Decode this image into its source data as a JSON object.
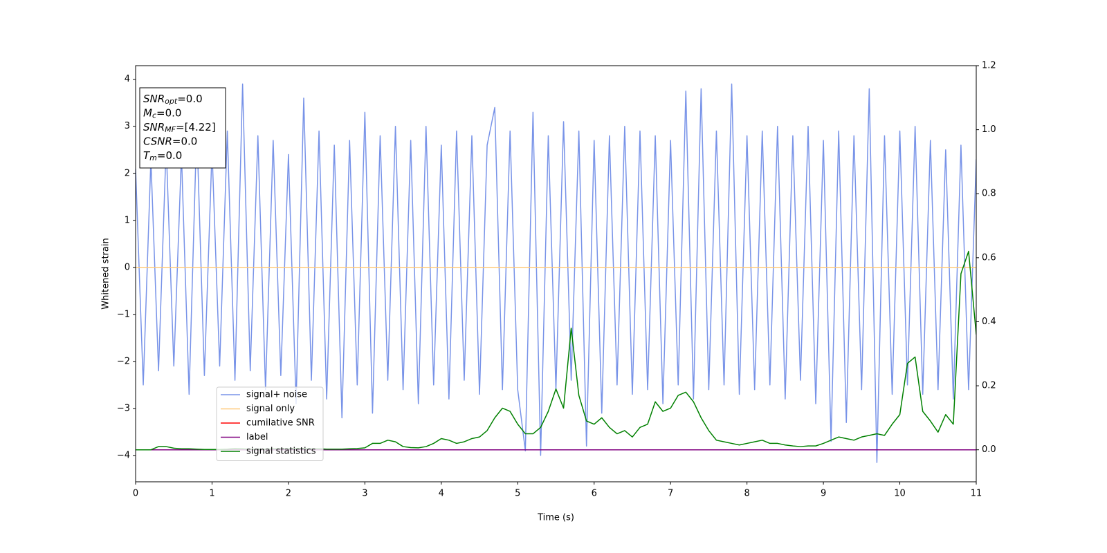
{
  "chart_data": {
    "type": "line",
    "xlabel": "Time (s)",
    "ylabel": "Whitened strain",
    "xlim": [
      0,
      11
    ],
    "ylim": [
      -4.56,
      4.29
    ],
    "y2lim": [
      -0.1,
      1.2
    ],
    "xticks": [
      0,
      1,
      2,
      3,
      4,
      5,
      6,
      7,
      8,
      9,
      10,
      11
    ],
    "yticks": [
      {
        "value": -4,
        "label": "−4"
      },
      {
        "value": -3,
        "label": "−3"
      },
      {
        "value": -2,
        "label": "−2"
      },
      {
        "value": -1,
        "label": "−1"
      },
      0,
      1,
      2,
      3,
      4
    ],
    "y2ticks": [
      {
        "value": 0,
        "label": "0.0"
      },
      0.2,
      0.4,
      0.6,
      0.8,
      {
        "value": 1,
        "label": "1.0"
      },
      1.2
    ],
    "legend": "lower left",
    "annotation": [
      {
        "main": "SNR",
        "sub": "opt",
        "value": "=0.0"
      },
      {
        "main": "M",
        "sub": "c",
        "value": "=0.0"
      },
      {
        "main": "SNR",
        "sub": "MF",
        "value": "=[4.22]"
      },
      {
        "main": "CSNR",
        "value": "=0.0"
      },
      {
        "main": "T",
        "sub": "m",
        "value": "=0.0"
      }
    ],
    "x": [
      0,
      0.1,
      0.2,
      0.3,
      0.4,
      0.5,
      0.6,
      0.7,
      0.8,
      0.9,
      1,
      1.1,
      1.2,
      1.3,
      1.4,
      1.5,
      1.6,
      1.7,
      1.8,
      1.9,
      2,
      2.1,
      2.2,
      2.3,
      2.4,
      2.5,
      2.6,
      2.7,
      2.8,
      2.9,
      3,
      3.1,
      3.2,
      3.3,
      3.4,
      3.5,
      3.6,
      3.7,
      3.8,
      3.9,
      4,
      4.1,
      4.2,
      4.3,
      4.4,
      4.5,
      4.6,
      4.7,
      4.8,
      4.9,
      5,
      5.1,
      5.2,
      5.3,
      5.4,
      5.5,
      5.6,
      5.7,
      5.8,
      5.9,
      6,
      6.1,
      6.2,
      6.3,
      6.4,
      6.5,
      6.6,
      6.7,
      6.8,
      6.9,
      7,
      7.1,
      7.2,
      7.3,
      7.4,
      7.5,
      7.6,
      7.7,
      7.8,
      7.9,
      8,
      8.1,
      8.2,
      8.3,
      8.4,
      8.5,
      8.6,
      8.7,
      8.8,
      8.9,
      9,
      9.1,
      9.2,
      9.3,
      9.4,
      9.5,
      9.6,
      9.7,
      9.8,
      9.9,
      10,
      10.1,
      10.2,
      10.3,
      10.4,
      10.5,
      10.6,
      10.7,
      10.8,
      10.9,
      11
    ],
    "series": [
      {
        "name": "signal+ noise",
        "color": "#7893e8",
        "values": [
          2.1,
          -2.5,
          2.3,
          -2.2,
          2.6,
          -2.1,
          2.4,
          -2.7,
          3,
          -2.3,
          2.5,
          -2.1,
          2.9,
          -2.4,
          3.9,
          -2.2,
          2.8,
          -2.6,
          2.7,
          -2.3,
          2.4,
          -2.9,
          3.6,
          -2.4,
          2.9,
          -2.8,
          2.6,
          -3.2,
          2.7,
          -2.5,
          3.3,
          -3.1,
          2.8,
          -2.4,
          3,
          -2.6,
          2.7,
          -2.9,
          3,
          -2.5,
          2.6,
          -2.8,
          2.9,
          -2.4,
          2.8,
          -2.7,
          2.6,
          3.4,
          -2.6,
          2.9,
          -2.6,
          -3.9,
          3.3,
          -4,
          2.8,
          -2.6,
          3.1,
          -2.4,
          2.9,
          -3.8,
          2.7,
          -3.1,
          2.8,
          -2.5,
          3,
          -2.7,
          2.9,
          -2.6,
          2.8,
          -2.9,
          2.7,
          -2.5,
          3.75,
          -2.8,
          3.8,
          -2.6,
          2.9,
          -2.5,
          3.9,
          -2.7,
          2.8,
          -2.6,
          2.9,
          -2.5,
          3,
          -2.8,
          2.8,
          -2.4,
          3,
          -2.9,
          2.7,
          -3.7,
          2.9,
          -3.3,
          2.8,
          -2.6,
          3.8,
          -4.15,
          2.8,
          -2.7,
          2.9,
          -2.5,
          3,
          -2.7,
          2.7,
          -2.6,
          2.5,
          -2.8,
          2.6,
          -2.6,
          2.3
        ]
      },
      {
        "name": "signal only",
        "color": "#ffc97a",
        "x": [
          0,
          11
        ],
        "values": [
          0,
          0
        ]
      },
      {
        "name": "cumilative SNR",
        "color": "#ff0000",
        "axis": "y2",
        "x": [
          0,
          11
        ],
        "values": [
          0,
          0
        ]
      },
      {
        "name": "label",
        "color": "#800080",
        "axis": "y2",
        "x": [
          0,
          11
        ],
        "values": [
          0,
          0
        ]
      },
      {
        "name": "signal statistics",
        "color": "#008000",
        "axis": "y2",
        "values": [
          0,
          0,
          0,
          0.01,
          0.01,
          0.005,
          0.003,
          0.003,
          0.002,
          0.001,
          0.001,
          0.001,
          0.002,
          0.004,
          0.003,
          0.002,
          0.002,
          0.002,
          0.003,
          0.003,
          0.003,
          0.004,
          0.004,
          0.003,
          0.003,
          0.002,
          0.002,
          0.002,
          0.003,
          0.004,
          0.006,
          0.02,
          0.02,
          0.03,
          0.025,
          0.01,
          0.007,
          0.006,
          0.01,
          0.02,
          0.035,
          0.03,
          0.02,
          0.025,
          0.035,
          0.04,
          0.06,
          0.1,
          0.13,
          0.12,
          0.08,
          0.05,
          0.05,
          0.07,
          0.12,
          0.19,
          0.13,
          0.38,
          0.17,
          0.09,
          0.08,
          0.1,
          0.07,
          0.05,
          0.06,
          0.04,
          0.07,
          0.08,
          0.15,
          0.12,
          0.13,
          0.17,
          0.18,
          0.15,
          0.1,
          0.06,
          0.03,
          0.025,
          0.02,
          0.015,
          0.02,
          0.025,
          0.03,
          0.02,
          0.02,
          0.015,
          0.012,
          0.01,
          0.012,
          0.012,
          0.02,
          0.03,
          0.04,
          0.035,
          0.03,
          0.04,
          0.045,
          0.05,
          0.045,
          0.08,
          0.11,
          0.27,
          0.29,
          0.12,
          0.09,
          0.055,
          0.11,
          0.08,
          0.55,
          0.62,
          0.36
        ]
      }
    ]
  }
}
